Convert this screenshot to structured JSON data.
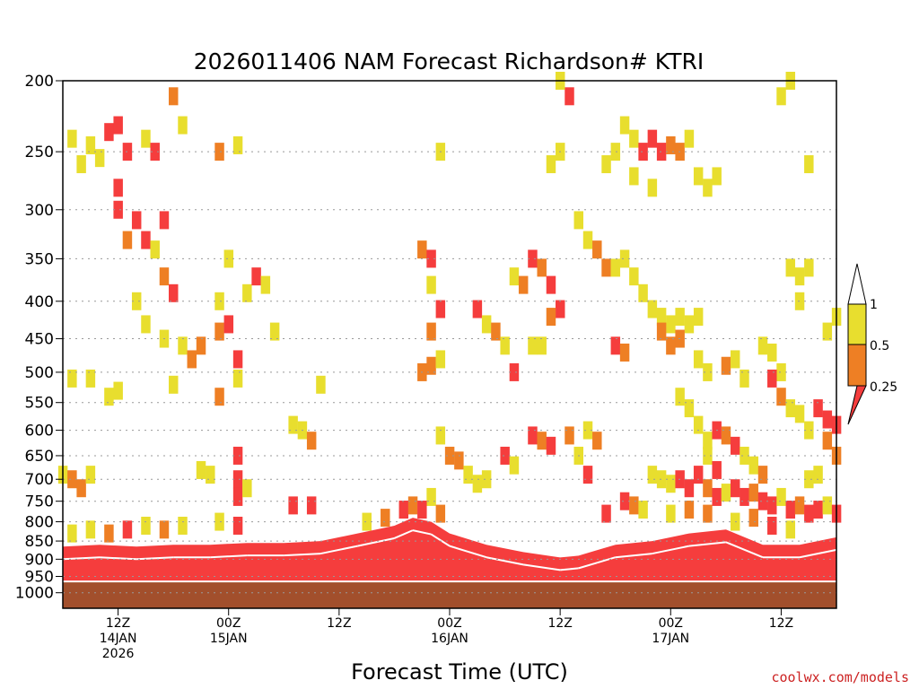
{
  "chart_data": {
    "type": "heatmap",
    "title": "2026011406 NAM Forecast Richardson# KTRI",
    "xlabel": "Forecast Time (UTC)",
    "ylabel": "",
    "y_scale": "log-pressure",
    "ylim": [
      1000,
      200
    ],
    "yticks": [
      200,
      250,
      300,
      350,
      400,
      450,
      500,
      550,
      600,
      650,
      700,
      750,
      800,
      850,
      900,
      950,
      1000
    ],
    "ytick_labels": [
      "200",
      "250",
      "300",
      "350",
      "400",
      "450",
      "500",
      "550",
      "600",
      "650",
      "700",
      "750",
      "800",
      "850",
      "900",
      "950",
      "1000"
    ],
    "x_range_hours": [
      0,
      84
    ],
    "x_ticks": [
      {
        "hour": 6,
        "label1": "12Z",
        "label2": "14JAN",
        "label3": "2026"
      },
      {
        "hour": 18,
        "label1": "00Z",
        "label2": "15JAN",
        "label3": ""
      },
      {
        "hour": 30,
        "label1": "12Z",
        "label2": "",
        "label3": ""
      },
      {
        "hour": 42,
        "label1": "00Z",
        "label2": "16JAN",
        "label3": ""
      },
      {
        "hour": 54,
        "label1": "12Z",
        "label2": "",
        "label3": ""
      },
      {
        "hour": 66,
        "label1": "00Z",
        "label2": "17JAN",
        "label3": ""
      },
      {
        "hour": 78,
        "label1": "12Z",
        "label2": "",
        "label3": ""
      }
    ],
    "legend": {
      "levels": [
        "0.25",
        "0.5",
        "1"
      ],
      "bins": [
        {
          "name": "< 0.25",
          "color": "#f53d3d"
        },
        {
          "name": "0.25 – 0.5",
          "color": "#ee7f24"
        },
        {
          "name": "0.5 – 1",
          "color": "#e8de2e"
        },
        {
          "name": "> 1",
          "color": "#ffffff"
        }
      ]
    },
    "ground": {
      "color": "#a24f2c",
      "surface_pressure_hpa": 965
    },
    "cells": [
      {
        "hour": 1,
        "p": 240,
        "c": "y"
      },
      {
        "hour": 2,
        "p": 260,
        "c": "y"
      },
      {
        "hour": 3,
        "p": 245,
        "c": "y"
      },
      {
        "hour": 4,
        "p": 255,
        "c": "y"
      },
      {
        "hour": 5,
        "p": 235,
        "c": "r"
      },
      {
        "hour": 6,
        "p": 230,
        "c": "r"
      },
      {
        "hour": 6,
        "p": 280,
        "c": "r"
      },
      {
        "hour": 6,
        "p": 300,
        "c": "r"
      },
      {
        "hour": 7,
        "p": 250,
        "c": "r"
      },
      {
        "hour": 8,
        "p": 310,
        "c": "r"
      },
      {
        "hour": 9,
        "p": 240,
        "c": "y"
      },
      {
        "hour": 10,
        "p": 250,
        "c": "r"
      },
      {
        "hour": 11,
        "p": 310,
        "c": "r"
      },
      {
        "hour": 12,
        "p": 210,
        "c": "o"
      },
      {
        "hour": 13,
        "p": 230,
        "c": "y"
      },
      {
        "hour": 17,
        "p": 250,
        "c": "o"
      },
      {
        "hour": 19,
        "p": 245,
        "c": "y"
      },
      {
        "hour": 7,
        "p": 330,
        "c": "o"
      },
      {
        "hour": 9,
        "p": 330,
        "c": "r"
      },
      {
        "hour": 10,
        "p": 340,
        "c": "y"
      },
      {
        "hour": 11,
        "p": 370,
        "c": "o"
      },
      {
        "hour": 12,
        "p": 390,
        "c": "r"
      },
      {
        "hour": 8,
        "p": 400,
        "c": "y"
      },
      {
        "hour": 9,
        "p": 430,
        "c": "y"
      },
      {
        "hour": 11,
        "p": 450,
        "c": "y"
      },
      {
        "hour": 13,
        "p": 460,
        "c": "y"
      },
      {
        "hour": 14,
        "p": 480,
        "c": "o"
      },
      {
        "hour": 15,
        "p": 460,
        "c": "o"
      },
      {
        "hour": 17,
        "p": 440,
        "c": "o"
      },
      {
        "hour": 18,
        "p": 430,
        "c": "r"
      },
      {
        "hour": 19,
        "p": 480,
        "c": "r"
      },
      {
        "hour": 17,
        "p": 400,
        "c": "y"
      },
      {
        "hour": 20,
        "p": 390,
        "c": "y"
      },
      {
        "hour": 21,
        "p": 370,
        "c": "r"
      },
      {
        "hour": 22,
        "p": 380,
        "c": "y"
      },
      {
        "hour": 18,
        "p": 350,
        "c": "y"
      },
      {
        "hour": 23,
        "p": 440,
        "c": "y"
      },
      {
        "hour": 17,
        "p": 540,
        "c": "o"
      },
      {
        "hour": 19,
        "p": 510,
        "c": "y"
      },
      {
        "hour": 5,
        "p": 540,
        "c": "y"
      },
      {
        "hour": 6,
        "p": 530,
        "c": "y"
      },
      {
        "hour": 3,
        "p": 510,
        "c": "y"
      },
      {
        "hour": 1,
        "p": 510,
        "c": "y"
      },
      {
        "hour": 12,
        "p": 520,
        "c": "y"
      },
      {
        "hour": 0,
        "p": 690,
        "c": "y"
      },
      {
        "hour": 1,
        "p": 700,
        "c": "o"
      },
      {
        "hour": 2,
        "p": 720,
        "c": "o"
      },
      {
        "hour": 3,
        "p": 690,
        "c": "y"
      },
      {
        "hour": 15,
        "p": 680,
        "c": "y"
      },
      {
        "hour": 16,
        "p": 690,
        "c": "y"
      },
      {
        "hour": 19,
        "p": 700,
        "c": "r"
      },
      {
        "hour": 19,
        "p": 740,
        "c": "r"
      },
      {
        "hour": 20,
        "p": 720,
        "c": "y"
      },
      {
        "hour": 19,
        "p": 650,
        "c": "r"
      },
      {
        "hour": 25,
        "p": 590,
        "c": "y"
      },
      {
        "hour": 26,
        "p": 600,
        "c": "y"
      },
      {
        "hour": 27,
        "p": 620,
        "c": "o"
      },
      {
        "hour": 28,
        "p": 520,
        "c": "y"
      },
      {
        "hour": 25,
        "p": 760,
        "c": "r"
      },
      {
        "hour": 27,
        "p": 760,
        "c": "r"
      },
      {
        "hour": 39,
        "p": 340,
        "c": "o"
      },
      {
        "hour": 40,
        "p": 350,
        "c": "r"
      },
      {
        "hour": 40,
        "p": 380,
        "c": "y"
      },
      {
        "hour": 41,
        "p": 410,
        "c": "r"
      },
      {
        "hour": 40,
        "p": 440,
        "c": "o"
      },
      {
        "hour": 40,
        "p": 490,
        "c": "o"
      },
      {
        "hour": 39,
        "p": 500,
        "c": "o"
      },
      {
        "hour": 41,
        "p": 480,
        "c": "y"
      },
      {
        "hour": 41,
        "p": 250,
        "c": "y"
      },
      {
        "hour": 41,
        "p": 610,
        "c": "y"
      },
      {
        "hour": 42,
        "p": 650,
        "c": "o"
      },
      {
        "hour": 43,
        "p": 660,
        "c": "o"
      },
      {
        "hour": 44,
        "p": 690,
        "c": "y"
      },
      {
        "hour": 45,
        "p": 710,
        "c": "y"
      },
      {
        "hour": 46,
        "p": 700,
        "c": "y"
      },
      {
        "hour": 40,
        "p": 740,
        "c": "y"
      },
      {
        "hour": 45,
        "p": 410,
        "c": "r"
      },
      {
        "hour": 46,
        "p": 430,
        "c": "y"
      },
      {
        "hour": 47,
        "p": 440,
        "c": "o"
      },
      {
        "hour": 48,
        "p": 460,
        "c": "y"
      },
      {
        "hour": 49,
        "p": 500,
        "c": "r"
      },
      {
        "hour": 49,
        "p": 370,
        "c": "y"
      },
      {
        "hour": 50,
        "p": 380,
        "c": "o"
      },
      {
        "hour": 51,
        "p": 350,
        "c": "r"
      },
      {
        "hour": 52,
        "p": 360,
        "c": "o"
      },
      {
        "hour": 53,
        "p": 380,
        "c": "r"
      },
      {
        "hour": 54,
        "p": 410,
        "c": "r"
      },
      {
        "hour": 53,
        "p": 420,
        "c": "o"
      },
      {
        "hour": 51,
        "p": 460,
        "c": "y"
      },
      {
        "hour": 52,
        "p": 460,
        "c": "y"
      },
      {
        "hour": 53,
        "p": 260,
        "c": "y"
      },
      {
        "hour": 54,
        "p": 250,
        "c": "y"
      },
      {
        "hour": 55,
        "p": 210,
        "c": "r"
      },
      {
        "hour": 54,
        "p": 200,
        "c": "y"
      },
      {
        "hour": 48,
        "p": 650,
        "c": "r"
      },
      {
        "hour": 49,
        "p": 670,
        "c": "y"
      },
      {
        "hour": 51,
        "p": 610,
        "c": "r"
      },
      {
        "hour": 52,
        "p": 620,
        "c": "o"
      },
      {
        "hour": 53,
        "p": 630,
        "c": "r"
      },
      {
        "hour": 55,
        "p": 610,
        "c": "o"
      },
      {
        "hour": 56,
        "p": 650,
        "c": "y"
      },
      {
        "hour": 57,
        "p": 690,
        "c": "r"
      },
      {
        "hour": 57,
        "p": 600,
        "c": "y"
      },
      {
        "hour": 58,
        "p": 620,
        "c": "o"
      },
      {
        "hour": 56,
        "p": 310,
        "c": "y"
      },
      {
        "hour": 57,
        "p": 330,
        "c": "y"
      },
      {
        "hour": 58,
        "p": 340,
        "c": "o"
      },
      {
        "hour": 59,
        "p": 360,
        "c": "o"
      },
      {
        "hour": 59,
        "p": 260,
        "c": "y"
      },
      {
        "hour": 60,
        "p": 250,
        "c": "y"
      },
      {
        "hour": 61,
        "p": 230,
        "c": "y"
      },
      {
        "hour": 62,
        "p": 240,
        "c": "y"
      },
      {
        "hour": 63,
        "p": 250,
        "c": "r"
      },
      {
        "hour": 64,
        "p": 240,
        "c": "r"
      },
      {
        "hour": 65,
        "p": 250,
        "c": "r"
      },
      {
        "hour": 66,
        "p": 245,
        "c": "o"
      },
      {
        "hour": 67,
        "p": 250,
        "c": "o"
      },
      {
        "hour": 68,
        "p": 240,
        "c": "y"
      },
      {
        "hour": 69,
        "p": 270,
        "c": "y"
      },
      {
        "hour": 70,
        "p": 280,
        "c": "y"
      },
      {
        "hour": 71,
        "p": 270,
        "c": "y"
      },
      {
        "hour": 62,
        "p": 270,
        "c": "y"
      },
      {
        "hour": 64,
        "p": 280,
        "c": "y"
      },
      {
        "hour": 60,
        "p": 360,
        "c": "y"
      },
      {
        "hour": 61,
        "p": 350,
        "c": "y"
      },
      {
        "hour": 62,
        "p": 370,
        "c": "y"
      },
      {
        "hour": 63,
        "p": 390,
        "c": "y"
      },
      {
        "hour": 64,
        "p": 410,
        "c": "y"
      },
      {
        "hour": 65,
        "p": 420,
        "c": "y"
      },
      {
        "hour": 66,
        "p": 430,
        "c": "y"
      },
      {
        "hour": 67,
        "p": 420,
        "c": "y"
      },
      {
        "hour": 68,
        "p": 430,
        "c": "y"
      },
      {
        "hour": 69,
        "p": 420,
        "c": "y"
      },
      {
        "hour": 65,
        "p": 440,
        "c": "o"
      },
      {
        "hour": 66,
        "p": 460,
        "c": "o"
      },
      {
        "hour": 67,
        "p": 450,
        "c": "o"
      },
      {
        "hour": 60,
        "p": 460,
        "c": "r"
      },
      {
        "hour": 61,
        "p": 470,
        "c": "o"
      },
      {
        "hour": 69,
        "p": 480,
        "c": "y"
      },
      {
        "hour": 70,
        "p": 500,
        "c": "y"
      },
      {
        "hour": 72,
        "p": 490,
        "c": "o"
      },
      {
        "hour": 73,
        "p": 480,
        "c": "y"
      },
      {
        "hour": 74,
        "p": 510,
        "c": "y"
      },
      {
        "hour": 76,
        "p": 460,
        "c": "y"
      },
      {
        "hour": 77,
        "p": 470,
        "c": "y"
      },
      {
        "hour": 78,
        "p": 500,
        "c": "y"
      },
      {
        "hour": 79,
        "p": 360,
        "c": "y"
      },
      {
        "hour": 80,
        "p": 370,
        "c": "y"
      },
      {
        "hour": 81,
        "p": 360,
        "c": "y"
      },
      {
        "hour": 78,
        "p": 210,
        "c": "y"
      },
      {
        "hour": 79,
        "p": 200,
        "c": "y"
      },
      {
        "hour": 81,
        "p": 260,
        "c": "y"
      },
      {
        "hour": 80,
        "p": 400,
        "c": "y"
      },
      {
        "hour": 83,
        "p": 440,
        "c": "y"
      },
      {
        "hour": 84,
        "p": 420,
        "c": "y"
      },
      {
        "hour": 77,
        "p": 510,
        "c": "r"
      },
      {
        "hour": 78,
        "p": 540,
        "c": "o"
      },
      {
        "hour": 79,
        "p": 560,
        "c": "y"
      },
      {
        "hour": 80,
        "p": 570,
        "c": "y"
      },
      {
        "hour": 81,
        "p": 600,
        "c": "y"
      },
      {
        "hour": 82,
        "p": 560,
        "c": "r"
      },
      {
        "hour": 83,
        "p": 580,
        "c": "r"
      },
      {
        "hour": 84,
        "p": 590,
        "c": "r"
      },
      {
        "hour": 83,
        "p": 620,
        "c": "o"
      },
      {
        "hour": 84,
        "p": 650,
        "c": "o"
      },
      {
        "hour": 82,
        "p": 690,
        "c": "y"
      },
      {
        "hour": 81,
        "p": 700,
        "c": "y"
      },
      {
        "hour": 67,
        "p": 540,
        "c": "y"
      },
      {
        "hour": 68,
        "p": 560,
        "c": "y"
      },
      {
        "hour": 69,
        "p": 590,
        "c": "y"
      },
      {
        "hour": 70,
        "p": 620,
        "c": "y"
      },
      {
        "hour": 71,
        "p": 600,
        "c": "r"
      },
      {
        "hour": 72,
        "p": 610,
        "c": "o"
      },
      {
        "hour": 73,
        "p": 630,
        "c": "r"
      },
      {
        "hour": 74,
        "p": 650,
        "c": "y"
      },
      {
        "hour": 75,
        "p": 670,
        "c": "y"
      },
      {
        "hour": 76,
        "p": 690,
        "c": "o"
      },
      {
        "hour": 70,
        "p": 650,
        "c": "y"
      },
      {
        "hour": 71,
        "p": 680,
        "c": "r"
      },
      {
        "hour": 64,
        "p": 690,
        "c": "y"
      },
      {
        "hour": 65,
        "p": 700,
        "c": "y"
      },
      {
        "hour": 66,
        "p": 710,
        "c": "y"
      },
      {
        "hour": 67,
        "p": 700,
        "c": "r"
      },
      {
        "hour": 68,
        "p": 720,
        "c": "r"
      },
      {
        "hour": 69,
        "p": 690,
        "c": "r"
      },
      {
        "hour": 70,
        "p": 720,
        "c": "o"
      },
      {
        "hour": 71,
        "p": 740,
        "c": "r"
      },
      {
        "hour": 72,
        "p": 730,
        "c": "y"
      },
      {
        "hour": 73,
        "p": 720,
        "c": "r"
      },
      {
        "hour": 74,
        "p": 740,
        "c": "r"
      },
      {
        "hour": 75,
        "p": 730,
        "c": "o"
      },
      {
        "hour": 76,
        "p": 750,
        "c": "r"
      },
      {
        "hour": 77,
        "p": 760,
        "c": "r"
      },
      {
        "hour": 78,
        "p": 740,
        "c": "y"
      },
      {
        "hour": 79,
        "p": 770,
        "c": "r"
      },
      {
        "hour": 80,
        "p": 760,
        "c": "o"
      },
      {
        "hour": 81,
        "p": 780,
        "c": "r"
      },
      {
        "hour": 82,
        "p": 770,
        "c": "r"
      },
      {
        "hour": 83,
        "p": 760,
        "c": "y"
      },
      {
        "hour": 84,
        "p": 780,
        "c": "r"
      },
      {
        "hour": 61,
        "p": 750,
        "c": "r"
      },
      {
        "hour": 62,
        "p": 760,
        "c": "o"
      },
      {
        "hour": 63,
        "p": 770,
        "c": "y"
      },
      {
        "hour": 59,
        "p": 780,
        "c": "r"
      },
      {
        "hour": 75,
        "p": 790,
        "c": "o"
      },
      {
        "hour": 77,
        "p": 810,
        "c": "r"
      },
      {
        "hour": 79,
        "p": 820,
        "c": "y"
      },
      {
        "hour": 73,
        "p": 800,
        "c": "y"
      },
      {
        "hour": 70,
        "p": 780,
        "c": "o"
      },
      {
        "hour": 68,
        "p": 770,
        "c": "o"
      },
      {
        "hour": 66,
        "p": 780,
        "c": "y"
      },
      {
        "hour": 1,
        "p": 830,
        "c": "y"
      },
      {
        "hour": 3,
        "p": 820,
        "c": "y"
      },
      {
        "hour": 5,
        "p": 830,
        "c": "o"
      },
      {
        "hour": 7,
        "p": 820,
        "c": "r"
      },
      {
        "hour": 9,
        "p": 810,
        "c": "y"
      },
      {
        "hour": 11,
        "p": 820,
        "c": "o"
      },
      {
        "hour": 13,
        "p": 810,
        "c": "y"
      },
      {
        "hour": 17,
        "p": 800,
        "c": "y"
      },
      {
        "hour": 19,
        "p": 810,
        "c": "r"
      },
      {
        "hour": 33,
        "p": 800,
        "c": "y"
      },
      {
        "hour": 35,
        "p": 790,
        "c": "o"
      },
      {
        "hour": 37,
        "p": 770,
        "c": "r"
      },
      {
        "hour": 38,
        "p": 760,
        "c": "o"
      },
      {
        "hour": 39,
        "p": 770,
        "c": "r"
      },
      {
        "hour": 41,
        "p": 780,
        "c": "o"
      }
    ],
    "pbl": [
      {
        "hour": 0,
        "top": 865
      },
      {
        "hour": 4,
        "top": 860
      },
      {
        "hour": 8,
        "top": 865
      },
      {
        "hour": 12,
        "top": 860
      },
      {
        "hour": 16,
        "top": 860
      },
      {
        "hour": 20,
        "top": 855
      },
      {
        "hour": 24,
        "top": 855
      },
      {
        "hour": 28,
        "top": 850
      },
      {
        "hour": 32,
        "top": 830
      },
      {
        "hour": 36,
        "top": 810
      },
      {
        "hour": 38,
        "top": 790
      },
      {
        "hour": 40,
        "top": 800
      },
      {
        "hour": 42,
        "top": 830
      },
      {
        "hour": 46,
        "top": 860
      },
      {
        "hour": 50,
        "top": 880
      },
      {
        "hour": 54,
        "top": 895
      },
      {
        "hour": 56,
        "top": 890
      },
      {
        "hour": 58,
        "top": 875
      },
      {
        "hour": 60,
        "top": 860
      },
      {
        "hour": 64,
        "top": 850
      },
      {
        "hour": 68,
        "top": 830
      },
      {
        "hour": 72,
        "top": 820
      },
      {
        "hour": 76,
        "top": 860
      },
      {
        "hour": 80,
        "top": 860
      },
      {
        "hour": 84,
        "top": 840
      }
    ]
  },
  "footer": {
    "credit": "coolwx.com/models",
    "credit_color": "#cc2222"
  }
}
